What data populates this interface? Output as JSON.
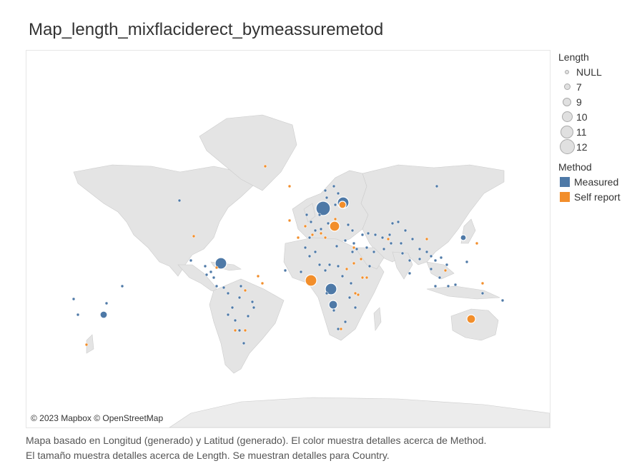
{
  "title": "Map_length_mixflaciderect_bymeassuremetod",
  "attribution": "© 2023 Mapbox © OpenStreetMap",
  "legend": {
    "length_title": "Length",
    "length_items": [
      "NULL",
      "7",
      "9",
      "10",
      "11",
      "12"
    ],
    "method_title": "Method",
    "method_items": [
      {
        "label": "Measured",
        "color": "#4e79a7"
      },
      {
        "label": "Self report",
        "color": "#f28e2b"
      }
    ]
  },
  "caption": {
    "line1": "Mapa basado en Longitud (generado) y Latitud (generado). El color muestra detalles acerca de Method.",
    "line2": "El tamaño muestra detalles acerca de Length. Se muestran detalles para Country."
  },
  "map": {
    "land_color": "#e4e4e4",
    "border_color": "#cccccc",
    "water_color": "#ffffff"
  }
}
